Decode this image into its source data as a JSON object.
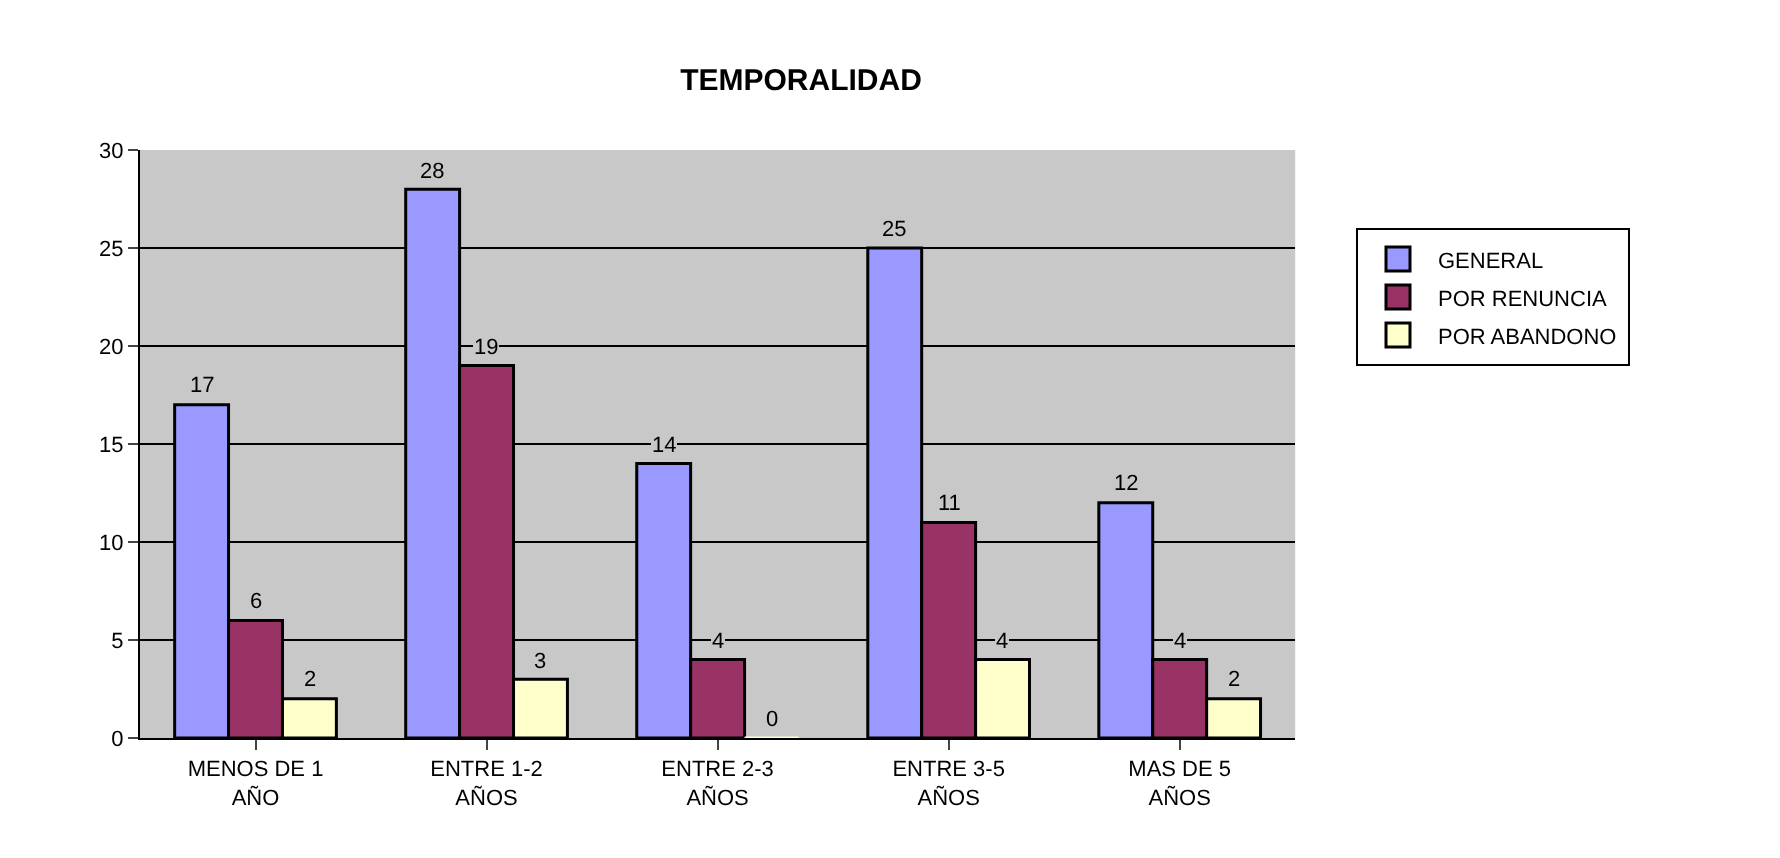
{
  "chart_data": {
    "type": "bar",
    "title": "TEMPORALIDAD",
    "categories": [
      "MENOS DE 1\nAÑO",
      "ENTRE 1-2\nAÑOS",
      "ENTRE 2-3\nAÑOS",
      "ENTRE 3-5\nAÑOS",
      "MAS DE 5\nAÑOS"
    ],
    "series": [
      {
        "name": "GENERAL",
        "color": "#9999ff",
        "values": [
          17,
          28,
          14,
          25,
          12
        ]
      },
      {
        "name": "POR RENUNCIA",
        "color": "#993366",
        "values": [
          6,
          19,
          4,
          11,
          4
        ]
      },
      {
        "name": "POR ABANDONO",
        "color": "#ffffcc",
        "values": [
          2,
          3,
          0,
          4,
          2
        ]
      }
    ],
    "ylim": [
      0,
      30
    ],
    "yticks": [
      0,
      5,
      10,
      15,
      20,
      25,
      30
    ],
    "grid": "y",
    "legend": "right",
    "data_labels": true
  }
}
